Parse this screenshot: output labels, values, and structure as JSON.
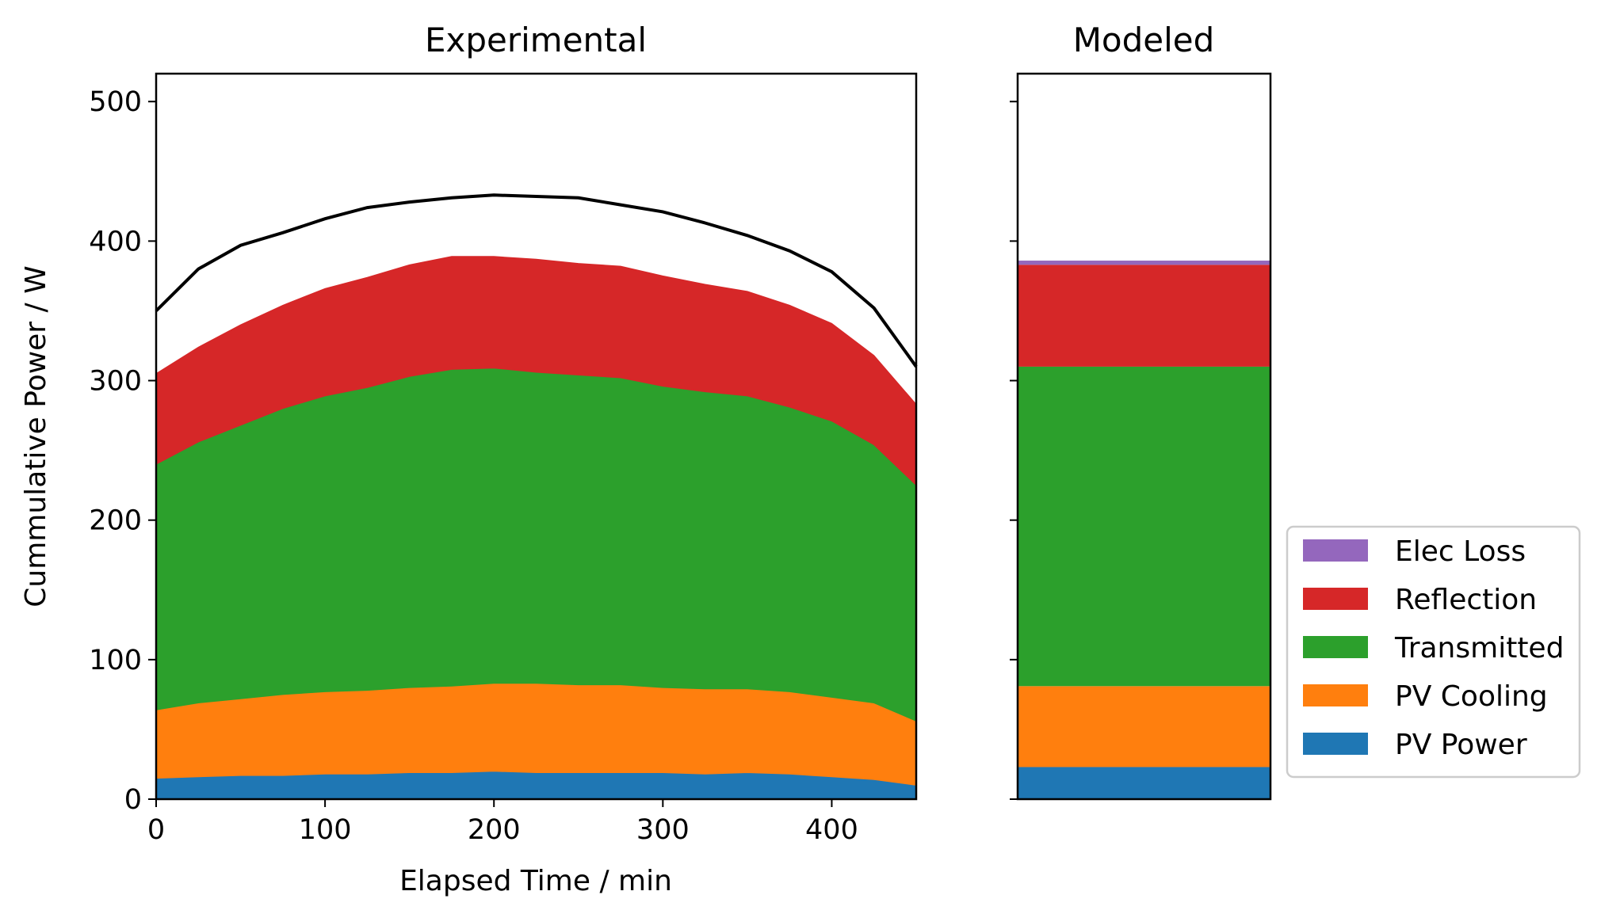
{
  "chart_data": [
    {
      "type": "area",
      "title": "Experimental",
      "xlabel": "Elapsed Time / min",
      "ylabel": "Cummulative Power / W",
      "xlim": [
        0,
        450
      ],
      "ylim": [
        0,
        520
      ],
      "xticks": [
        "0",
        "100",
        "200",
        "300",
        "400"
      ],
      "yticks": [
        "0",
        "100",
        "200",
        "300",
        "400",
        "500"
      ],
      "stacked": true,
      "x": [
        0,
        25,
        50,
        75,
        100,
        125,
        150,
        175,
        200,
        225,
        250,
        275,
        300,
        325,
        350,
        375,
        400,
        425,
        450
      ],
      "series": [
        {
          "name": "PV Power",
          "color": "#1f77b4",
          "values": [
            15,
            16,
            17,
            17,
            18,
            18,
            19,
            19,
            20,
            19,
            19,
            19,
            19,
            18,
            19,
            18,
            16,
            14,
            10
          ]
        },
        {
          "name": "PV Cooling",
          "color": "#ff7f0e",
          "values": [
            49,
            53,
            55,
            58,
            59,
            60,
            61,
            62,
            63,
            64,
            63,
            63,
            61,
            61,
            60,
            59,
            57,
            55,
            46
          ]
        },
        {
          "name": "Transmitted",
          "color": "#2ca02c",
          "values": [
            176,
            187,
            196,
            205,
            212,
            217,
            223,
            227,
            226,
            223,
            222,
            220,
            216,
            213,
            210,
            204,
            198,
            185,
            169
          ]
        },
        {
          "name": "Reflection",
          "color": "#d62728",
          "values": [
            65,
            68,
            72,
            74,
            77,
            79,
            80,
            81,
            80,
            81,
            80,
            80,
            79,
            77,
            75,
            73,
            70,
            64,
            58
          ]
        }
      ],
      "total_line": {
        "color": "#000000",
        "values": [
          350,
          380,
          397,
          406,
          416,
          424,
          428,
          431,
          433,
          432,
          431,
          426,
          421,
          413,
          404,
          393,
          378,
          352,
          310
        ]
      }
    },
    {
      "type": "bar",
      "title": "Modeled",
      "stacked": true,
      "ylim": [
        0,
        520
      ],
      "series": [
        {
          "name": "PV Power",
          "color": "#1f77b4",
          "value": 23
        },
        {
          "name": "PV Cooling",
          "color": "#ff7f0e",
          "value": 58
        },
        {
          "name": "Transmitted",
          "color": "#2ca02c",
          "value": 229
        },
        {
          "name": "Reflection",
          "color": "#d62728",
          "value": 73
        },
        {
          "name": "Elec Loss",
          "color": "#9467bd",
          "value": 3
        }
      ],
      "legend": {
        "position": "right",
        "entries": [
          "Elec Loss",
          "Reflection",
          "Transmitted",
          "PV Cooling",
          "PV Power"
        ]
      }
    }
  ]
}
